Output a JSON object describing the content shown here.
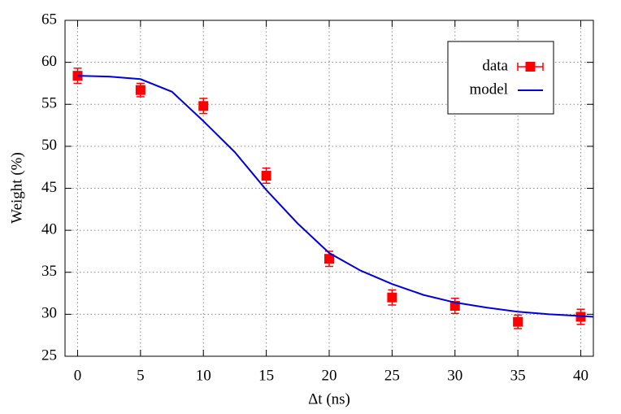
{
  "chart_data": {
    "type": "scatter",
    "xlabel": "Δt (ns)",
    "ylabel": "Weight (%)",
    "xlim": [
      -1,
      41
    ],
    "ylim": [
      25,
      65
    ],
    "xticks": [
      0,
      5,
      10,
      15,
      20,
      25,
      30,
      35,
      40
    ],
    "yticks": [
      25,
      30,
      35,
      40,
      45,
      50,
      55,
      60,
      65
    ],
    "grid": true,
    "legend": "upper right",
    "series": [
      {
        "name": "data",
        "type": "errorbar",
        "color": "#ff0000",
        "x": [
          0,
          5,
          10,
          15,
          20,
          25,
          30,
          35,
          40
        ],
        "values": [
          58.4,
          56.7,
          54.8,
          46.5,
          36.6,
          32.0,
          31.0,
          29.1,
          29.7
        ],
        "errors": [
          0.9,
          0.8,
          0.9,
          0.9,
          0.9,
          0.9,
          0.9,
          0.8,
          0.9
        ]
      },
      {
        "name": "model",
        "type": "line",
        "color": "#0000dd",
        "x": [
          0,
          2.5,
          5,
          7.5,
          10,
          12.5,
          15,
          17.5,
          20,
          22.5,
          25,
          27.5,
          30,
          32.5,
          35,
          37.5,
          40,
          41
        ],
        "values": [
          58.4,
          58.3,
          58.0,
          56.5,
          53.0,
          49.3,
          44.8,
          40.8,
          37.3,
          35.2,
          33.6,
          32.3,
          31.4,
          30.8,
          30.3,
          30.0,
          29.8,
          29.7
        ]
      }
    ]
  }
}
